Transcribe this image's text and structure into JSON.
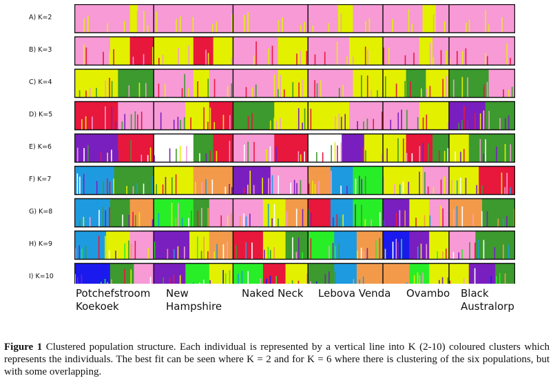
{
  "chart_data": {
    "type": "structure-barplot",
    "title": "",
    "rows": [
      {
        "label": "A) K=2",
        "k": 2
      },
      {
        "label": "B) K=3",
        "k": 3
      },
      {
        "label": "C) K=4",
        "k": 4
      },
      {
        "label": "D) K=5",
        "k": 5
      },
      {
        "label": "E) K=6",
        "k": 6
      },
      {
        "label": "F) K=7",
        "k": 7
      },
      {
        "label": "G) K=8",
        "k": 8
      },
      {
        "label": "H) K=9",
        "k": 9
      },
      {
        "label": "I) K=10",
        "k": 10
      }
    ],
    "populations": [
      {
        "line1": "Potchefstroom",
        "line2": "Koekoek"
      },
      {
        "line1": "New",
        "line2": "Hampshire"
      },
      {
        "line1": "Naked Neck",
        "line2": ""
      },
      {
        "line1": "Lebova Venda",
        "line2": ""
      },
      {
        "line1": "Ovambo",
        "line2": ""
      },
      {
        "line1": "Black",
        "line2": "Australorp"
      }
    ],
    "population_boundaries_fraction": [
      0,
      0.18,
      0.36,
      0.53,
      0.7,
      0.85,
      1.0
    ],
    "cluster_colors": [
      "#f79ad6",
      "#e3f000",
      "#e8173c",
      "#3c9a2e",
      "#7a1fbf",
      "#ffffff",
      "#1e9be0",
      "#f39a4a",
      "#28ee28",
      "#1a1aee"
    ],
    "segments": [
      [
        [
          [
            0.7,
            0
          ],
          [
            0.1,
            1
          ],
          [
            0.2,
            0
          ]
        ],
        [
          [
            1.0,
            0
          ]
        ],
        [
          [
            1.0,
            0
          ]
        ],
        [
          [
            0.4,
            0
          ],
          [
            0.2,
            1
          ],
          [
            0.4,
            0
          ]
        ],
        [
          [
            0.6,
            0
          ],
          [
            0.2,
            1
          ],
          [
            0.2,
            0
          ]
        ],
        [
          [
            1.0,
            0
          ]
        ]
      ],
      [
        [
          [
            0.45,
            0
          ],
          [
            0.25,
            1
          ],
          [
            0.3,
            2
          ]
        ],
        [
          [
            0.5,
            1
          ],
          [
            0.25,
            2
          ],
          [
            0.25,
            1
          ]
        ],
        [
          [
            0.6,
            0
          ],
          [
            0.4,
            1
          ]
        ],
        [
          [
            0.55,
            0
          ],
          [
            0.45,
            1
          ]
        ],
        [
          [
            0.55,
            0
          ],
          [
            0.2,
            1
          ],
          [
            0.25,
            0
          ]
        ],
        [
          [
            1.0,
            0
          ]
        ]
      ],
      [
        [
          [
            0.55,
            1
          ],
          [
            0.45,
            3
          ]
        ],
        [
          [
            0.5,
            0
          ],
          [
            0.2,
            1
          ],
          [
            0.3,
            0
          ]
        ],
        [
          [
            0.6,
            0
          ],
          [
            0.4,
            1
          ]
        ],
        [
          [
            0.6,
            0
          ],
          [
            0.4,
            1
          ]
        ],
        [
          [
            0.35,
            1
          ],
          [
            0.3,
            3
          ],
          [
            0.35,
            1
          ]
        ],
        [
          [
            0.6,
            3
          ],
          [
            0.4,
            0
          ]
        ]
      ],
      [
        [
          [
            0.55,
            2
          ],
          [
            0.45,
            0
          ]
        ],
        [
          [
            0.4,
            0
          ],
          [
            0.3,
            1
          ],
          [
            0.3,
            2
          ]
        ],
        [
          [
            0.55,
            3
          ],
          [
            0.45,
            1
          ]
        ],
        [
          [
            0.55,
            1
          ],
          [
            0.45,
            0
          ]
        ],
        [
          [
            0.55,
            0
          ],
          [
            0.45,
            1
          ]
        ],
        [
          [
            0.55,
            4
          ],
          [
            0.45,
            3
          ]
        ]
      ],
      [
        [
          [
            0.55,
            4
          ],
          [
            0.45,
            2
          ]
        ],
        [
          [
            0.5,
            5
          ],
          [
            0.25,
            3
          ],
          [
            0.25,
            2
          ]
        ],
        [
          [
            0.55,
            0
          ],
          [
            0.45,
            2
          ]
        ],
        [
          [
            0.45,
            5
          ],
          [
            0.3,
            4
          ],
          [
            0.25,
            1
          ]
        ],
        [
          [
            0.35,
            1
          ],
          [
            0.4,
            2
          ],
          [
            0.25,
            3
          ]
        ],
        [
          [
            0.3,
            1
          ],
          [
            0.7,
            3
          ]
        ]
      ],
      [
        [
          [
            0.5,
            6
          ],
          [
            0.5,
            3
          ]
        ],
        [
          [
            0.5,
            1
          ],
          [
            0.5,
            7
          ]
        ],
        [
          [
            0.5,
            4
          ],
          [
            0.5,
            0
          ]
        ],
        [
          [
            0.3,
            7
          ],
          [
            0.3,
            6
          ],
          [
            0.4,
            8
          ]
        ],
        [
          [
            0.6,
            1
          ],
          [
            0.4,
            0
          ]
        ],
        [
          [
            0.45,
            1
          ],
          [
            0.55,
            2
          ]
        ]
      ],
      [
        [
          [
            0.45,
            6
          ],
          [
            0.25,
            3
          ],
          [
            0.3,
            7
          ]
        ],
        [
          [
            0.5,
            8
          ],
          [
            0.2,
            3
          ],
          [
            0.3,
            0
          ]
        ],
        [
          [
            0.4,
            0
          ],
          [
            0.3,
            1
          ],
          [
            0.3,
            7
          ]
        ],
        [
          [
            0.3,
            2
          ],
          [
            0.3,
            6
          ],
          [
            0.4,
            8
          ]
        ],
        [
          [
            0.4,
            4
          ],
          [
            0.3,
            1
          ],
          [
            0.3,
            0
          ]
        ],
        [
          [
            0.5,
            7
          ],
          [
            0.5,
            3
          ]
        ]
      ],
      [
        [
          [
            0.4,
            6
          ],
          [
            0.3,
            1
          ],
          [
            0.3,
            0
          ]
        ],
        [
          [
            0.45,
            4
          ],
          [
            0.25,
            1
          ],
          [
            0.3,
            7
          ]
        ],
        [
          [
            0.4,
            2
          ],
          [
            0.3,
            1
          ],
          [
            0.3,
            3
          ]
        ],
        [
          [
            0.35,
            8
          ],
          [
            0.3,
            6
          ],
          [
            0.35,
            7
          ]
        ],
        [
          [
            0.4,
            9
          ],
          [
            0.3,
            4
          ],
          [
            0.3,
            1
          ]
        ],
        [
          [
            0.4,
            0
          ],
          [
            0.6,
            3
          ]
        ]
      ],
      [
        [
          [
            0.45,
            9
          ],
          [
            0.3,
            3
          ],
          [
            0.25,
            0
          ]
        ],
        [
          [
            0.4,
            4
          ],
          [
            0.3,
            8
          ],
          [
            0.3,
            1
          ]
        ],
        [
          [
            0.4,
            8
          ],
          [
            0.3,
            2
          ],
          [
            0.3,
            1
          ]
        ],
        [
          [
            0.35,
            3
          ],
          [
            0.3,
            6
          ],
          [
            0.35,
            7
          ]
        ],
        [
          [
            0.4,
            7
          ],
          [
            0.3,
            8
          ],
          [
            0.3,
            1
          ]
        ],
        [
          [
            0.3,
            1
          ],
          [
            0.4,
            4
          ],
          [
            0.3,
            3
          ]
        ]
      ]
    ]
  },
  "caption": {
    "bold": "Figure 1",
    "text": " Clustered population structure. Each individual is represented by a vertical line into K (2-10) coloured clusters which represents the individuals. The best fit can be seen where K = 2 and for K = 6 where there is clustering of the six populations, but with some overlapping."
  }
}
